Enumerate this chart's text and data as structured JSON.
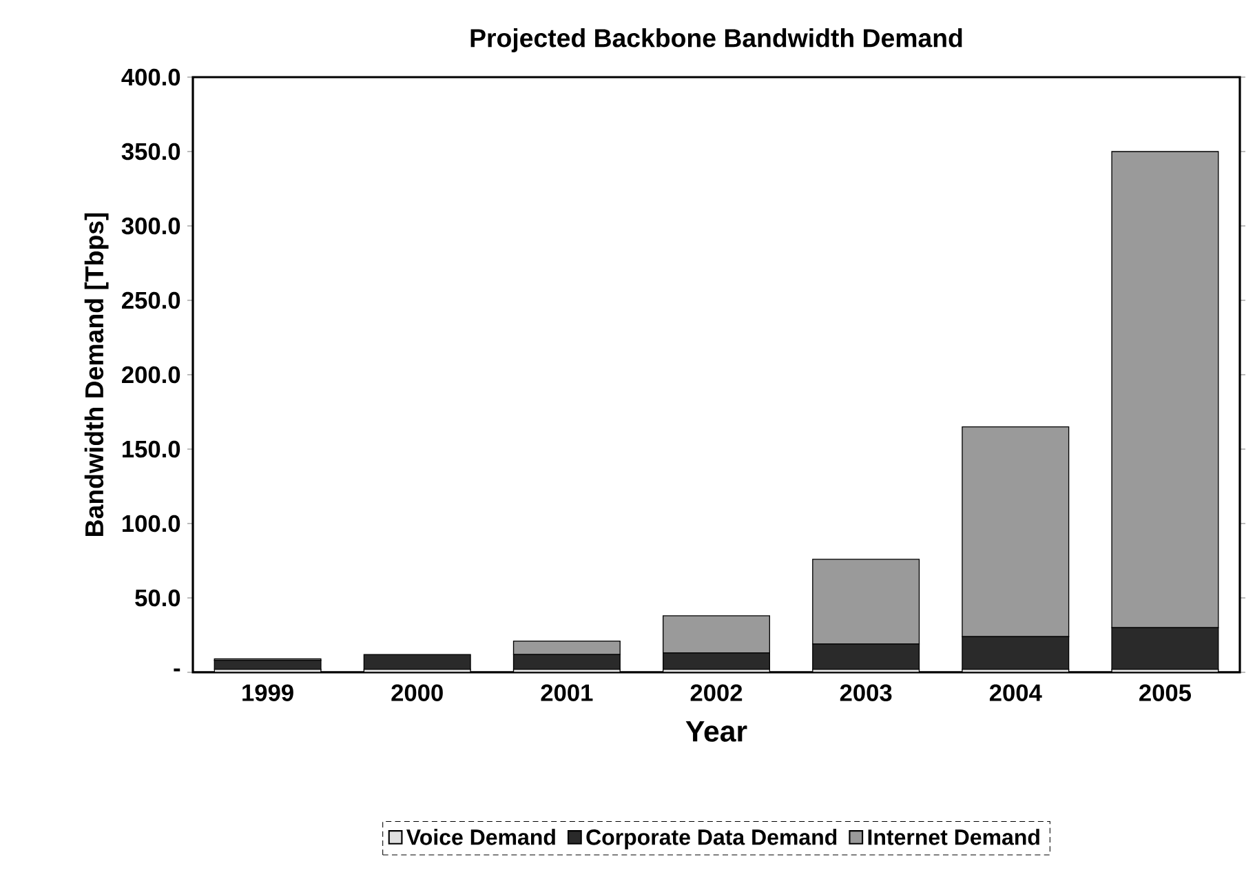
{
  "chart_data": {
    "type": "bar",
    "stacked": true,
    "title": "Projected Backbone Bandwidth Demand",
    "xlabel": "Year",
    "ylabel": "Bandwidth Demand [Tbps]",
    "categories": [
      "1999",
      "2000",
      "2001",
      "2002",
      "2003",
      "2004",
      "2005"
    ],
    "series": [
      {
        "name": "Voice Demand",
        "color": "#e0e0e0",
        "values": [
          2,
          2,
          2,
          2,
          2,
          2,
          2
        ]
      },
      {
        "name": "Corporate Data Demand",
        "color": "#2a2a2a",
        "values": [
          6,
          10,
          10,
          11,
          17,
          22,
          28
        ]
      },
      {
        "name": "Internet Demand",
        "color": "#9a9a9a",
        "values": [
          1,
          null,
          9,
          25,
          57,
          141,
          320
        ]
      }
    ],
    "ylim": [
      0,
      400
    ],
    "yticks": [
      {
        "value": 0,
        "label": "-"
      },
      {
        "value": 50,
        "label": "50.0"
      },
      {
        "value": 100,
        "label": "100.0"
      },
      {
        "value": 150,
        "label": "150.0"
      },
      {
        "value": 200,
        "label": "200.0"
      },
      {
        "value": 250,
        "label": "250.0"
      },
      {
        "value": 300,
        "label": "300.0"
      },
      {
        "value": 350,
        "label": "350.0"
      },
      {
        "value": 400,
        "label": "400.0"
      }
    ],
    "grid": false,
    "legend": "bottom"
  }
}
